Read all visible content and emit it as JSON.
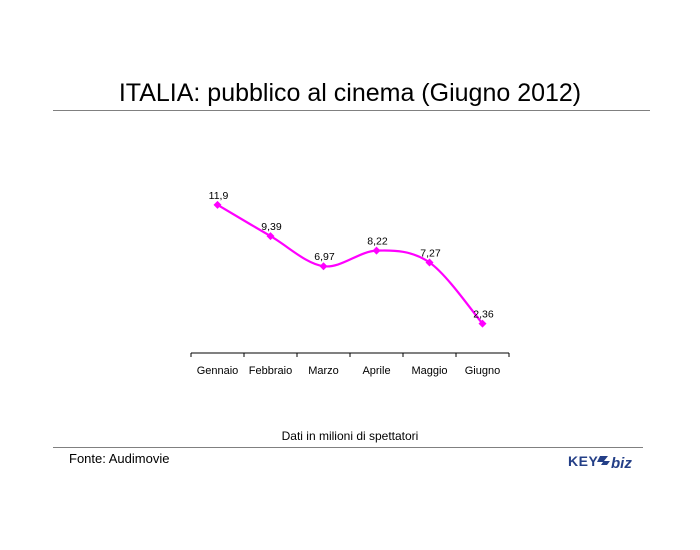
{
  "title": "ITALIA: pubblico al cinema (Giugno 2012)",
  "note": "Dati in milioni di spettatori",
  "source": "Fonte: Audimovie",
  "logo": {
    "text": "KEY4biz"
  },
  "chart_data": {
    "type": "line",
    "categories": [
      "Gennaio",
      "Febbraio",
      "Marzo",
      "Aprile",
      "Maggio",
      "Giugno"
    ],
    "values": [
      11.9,
      9.39,
      6.97,
      8.22,
      7.27,
      2.36
    ],
    "value_labels": [
      "11,9",
      "9,39",
      "6,97",
      "8,22",
      "7,27",
      "2,36"
    ],
    "title": "ITALIA: pubblico al cinema (Giugno 2012)",
    "xlabel": "",
    "ylabel": "",
    "ylim": [
      0,
      14
    ],
    "grid": false,
    "line_color": "#ff00ff",
    "axis_color": "#000000"
  }
}
